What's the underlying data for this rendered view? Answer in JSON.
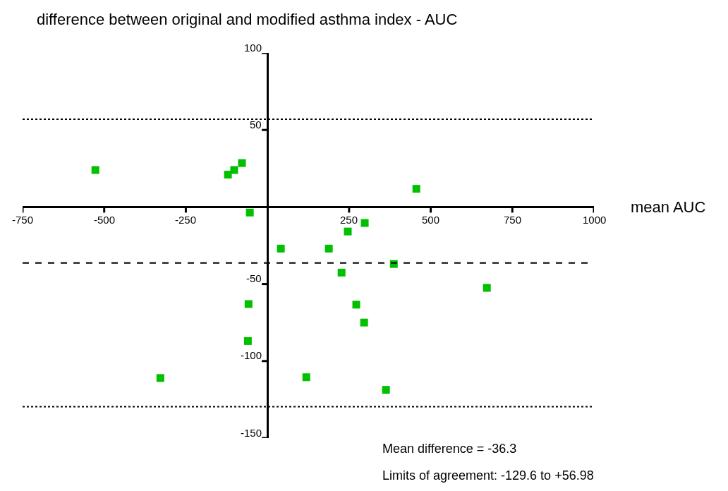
{
  "chart_data": {
    "type": "scatter",
    "title": "difference between original and modified asthma index - AUC",
    "xlabel": "mean AUC",
    "x": [
      -527,
      -121,
      -102,
      -78,
      -54,
      456,
      298,
      246,
      41,
      188,
      387,
      227,
      672,
      -58,
      272,
      296,
      -60,
      -328,
      119,
      363
    ],
    "series": [
      {
        "color": "#00c000",
        "values": [
          24,
          21,
          24,
          28.5,
          -3.6,
          11.8,
          -10.4,
          -15.9,
          -27,
          -27,
          -37,
          -42.6,
          -52.5,
          -63,
          -63.4,
          -75,
          -87,
          -111,
          -110.5,
          -118.7
        ]
      }
    ],
    "marker": "square",
    "xlim": [
      -750,
      1000
    ],
    "xticks": [
      -750,
      -500,
      -250,
      250,
      500,
      750,
      1000
    ],
    "ylim": [
      -150,
      100
    ],
    "yticks": [
      100,
      50,
      -50,
      -100,
      -150
    ],
    "ref_lines": [
      {
        "axis": "y",
        "value": 56.98,
        "line_style": "dotted",
        "color": "#000000"
      },
      {
        "axis": "y",
        "value": -36.3,
        "line_style": "dashed",
        "color": "#000000"
      },
      {
        "axis": "y",
        "value": -129.6,
        "line_style": "dotted",
        "color": "#000000"
      }
    ],
    "annotations": [
      "Mean difference = -36.3",
      "Limits of agreement: -129.6 to +56.98"
    ]
  }
}
